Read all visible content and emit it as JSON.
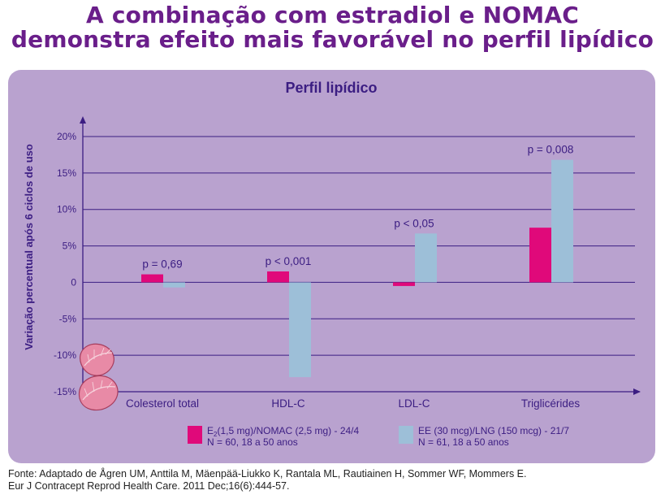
{
  "headline": {
    "line1": "A combinação com estradiol e NOMAC",
    "line2": "demonstra efeito mais favorável no perfil lipídico"
  },
  "colors": {
    "headline": "#6a1e8a",
    "panel_bg": "#b9a2cf",
    "axis": "#3b1d82",
    "series_magenta": "#e0097a",
    "series_lightblue": "#9dbfd8"
  },
  "chart_data": {
    "type": "bar",
    "title": "Perfil lipídico",
    "ylabel": "Variação percentual após 6 ciclos de uso",
    "xlabel": "",
    "categories": [
      "Colesterol total",
      "HDL-C",
      "LDL-C",
      "Triglicérides"
    ],
    "series": [
      {
        "name_main": "E",
        "name_sub": "2",
        "name_rest": "(1,5 mg)/NOMAC (2,5 mg) - 24/4",
        "name_line2": "N = 60, 18 a 50 anos",
        "color": "#e0097a",
        "values": [
          1.1,
          1.5,
          -0.5,
          7.5
        ]
      },
      {
        "name_main": "EE (30 mcg)/LNG (150 mcg) - 21/7",
        "name_line2": "N = 61, 18 a 50 anos",
        "color": "#9dbfd8",
        "values": [
          -0.7,
          -13.0,
          6.7,
          16.8
        ]
      }
    ],
    "annotations": [
      "p = 0,69",
      "p < 0,001",
      "p < 0,05",
      "p = 0,008"
    ],
    "yticks": [
      20,
      15,
      10,
      5,
      0,
      -5,
      -10,
      -15
    ],
    "ytick_labels": [
      "20%",
      "15%",
      "10%",
      "5%",
      "0",
      "-5%",
      "-10%",
      "-15%"
    ],
    "ylim": [
      -15,
      20
    ],
    "grid": true,
    "legend_position": "bottom"
  },
  "footer": {
    "line1": "Fonte: Adaptado de Ågren UM, Anttila M, Mäenpää-Liukko K, Rantala ML, Rautiainen H, Sommer WF, Mommers E.",
    "line2": "Eur J Contracept Reprod Health Care. 2011 Dec;16(6):444-57."
  }
}
